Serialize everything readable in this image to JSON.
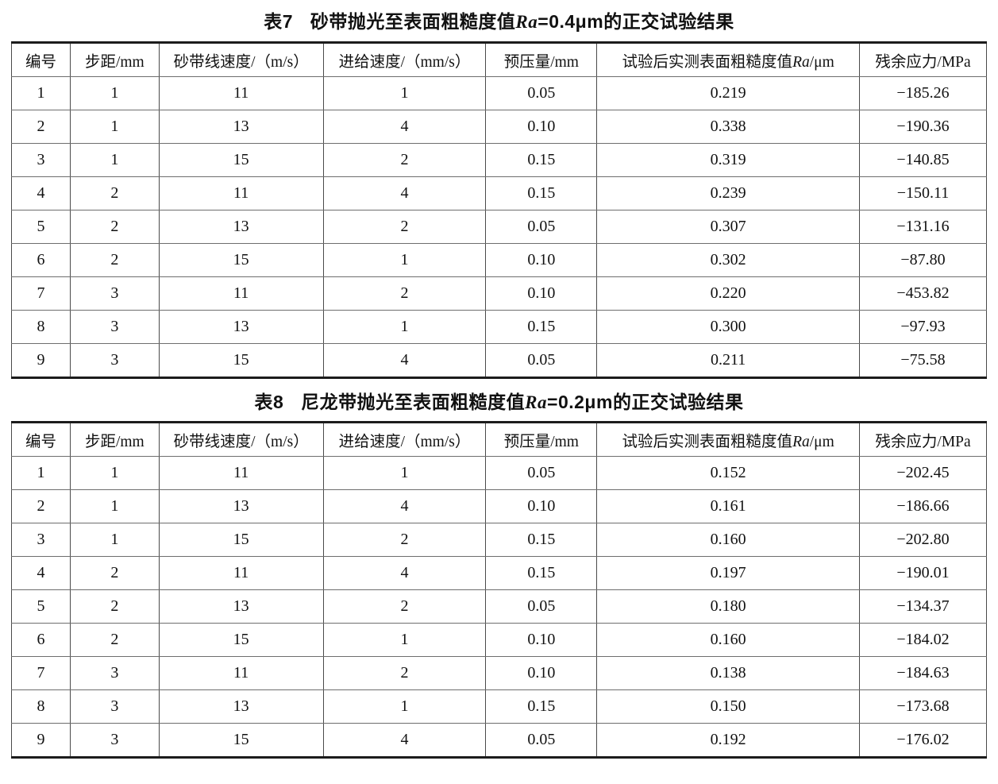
{
  "accent_colors": {
    "text": "#111111",
    "outer_rule": "#1c1c1c",
    "inner_rule": "#6e6e6e"
  },
  "tables": [
    {
      "title": {
        "prefix": "表7",
        "pre": "砂带抛光至表面粗糙度值",
        "italic": "Ra",
        "post": "=0.4μm的正交试验结果"
      },
      "headers": [
        {
          "pre": "编号",
          "italic": "",
          "post": ""
        },
        {
          "pre": "步距/mm",
          "italic": "",
          "post": ""
        },
        {
          "pre": "砂带线速度/（m/s）",
          "italic": "",
          "post": ""
        },
        {
          "pre": "进给速度/（mm/s）",
          "italic": "",
          "post": ""
        },
        {
          "pre": "预压量/mm",
          "italic": "",
          "post": ""
        },
        {
          "pre": "试验后实测表面粗糙度值",
          "italic": "Ra",
          "post": "/μm"
        },
        {
          "pre": "残余应力/MPa",
          "italic": "",
          "post": ""
        }
      ],
      "rows": [
        [
          "1",
          "1",
          "11",
          "1",
          "0.05",
          "0.219",
          "−185.26"
        ],
        [
          "2",
          "1",
          "13",
          "4",
          "0.10",
          "0.338",
          "−190.36"
        ],
        [
          "3",
          "1",
          "15",
          "2",
          "0.15",
          "0.319",
          "−140.85"
        ],
        [
          "4",
          "2",
          "11",
          "4",
          "0.15",
          "0.239",
          "−150.11"
        ],
        [
          "5",
          "2",
          "13",
          "2",
          "0.05",
          "0.307",
          "−131.16"
        ],
        [
          "6",
          "2",
          "15",
          "1",
          "0.10",
          "0.302",
          "−87.80"
        ],
        [
          "7",
          "3",
          "11",
          "2",
          "0.10",
          "0.220",
          "−453.82"
        ],
        [
          "8",
          "3",
          "13",
          "1",
          "0.15",
          "0.300",
          "−97.93"
        ],
        [
          "9",
          "3",
          "15",
          "4",
          "0.05",
          "0.211",
          "−75.58"
        ]
      ]
    },
    {
      "title": {
        "prefix": "表8",
        "pre": "尼龙带抛光至表面粗糙度值",
        "italic": "Ra",
        "post": "=0.2μm的正交试验结果"
      },
      "headers": [
        {
          "pre": "编号",
          "italic": "",
          "post": ""
        },
        {
          "pre": "步距/mm",
          "italic": "",
          "post": ""
        },
        {
          "pre": "砂带线速度/（m/s）",
          "italic": "",
          "post": ""
        },
        {
          "pre": "进给速度/（mm/s）",
          "italic": "",
          "post": ""
        },
        {
          "pre": "预压量/mm",
          "italic": "",
          "post": ""
        },
        {
          "pre": "试验后实测表面粗糙度值",
          "italic": "Ra",
          "post": "/μm"
        },
        {
          "pre": "残余应力/MPa",
          "italic": "",
          "post": ""
        }
      ],
      "rows": [
        [
          "1",
          "1",
          "11",
          "1",
          "0.05",
          "0.152",
          "−202.45"
        ],
        [
          "2",
          "1",
          "13",
          "4",
          "0.10",
          "0.161",
          "−186.66"
        ],
        [
          "3",
          "1",
          "15",
          "2",
          "0.15",
          "0.160",
          "−202.80"
        ],
        [
          "4",
          "2",
          "11",
          "4",
          "0.15",
          "0.197",
          "−190.01"
        ],
        [
          "5",
          "2",
          "13",
          "2",
          "0.05",
          "0.180",
          "−134.37"
        ],
        [
          "6",
          "2",
          "15",
          "1",
          "0.10",
          "0.160",
          "−184.02"
        ],
        [
          "7",
          "3",
          "11",
          "2",
          "0.10",
          "0.138",
          "−184.63"
        ],
        [
          "8",
          "3",
          "13",
          "1",
          "0.15",
          "0.150",
          "−173.68"
        ],
        [
          "9",
          "3",
          "15",
          "4",
          "0.05",
          "0.192",
          "−176.02"
        ]
      ]
    }
  ],
  "layout": {
    "column_widths_pct": [
      6.02,
      9.11,
      16.84,
      16.68,
      11.39,
      26.94,
      13.02
    ]
  }
}
